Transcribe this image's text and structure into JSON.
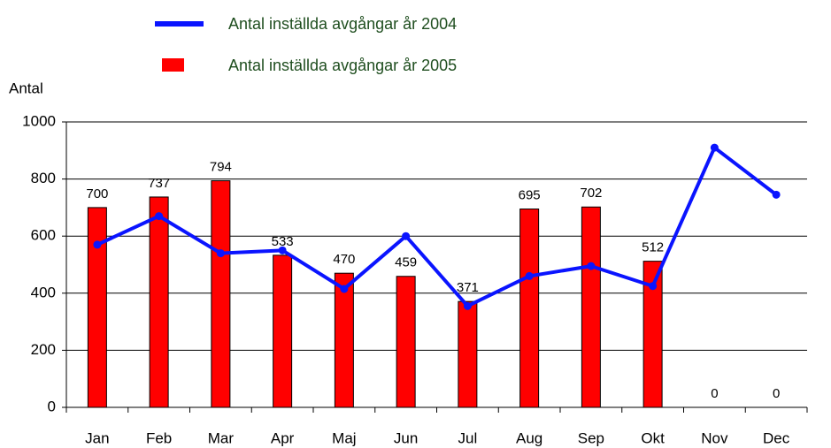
{
  "chart_data": {
    "type": "bar",
    "y_label": "Antal",
    "categories": [
      "Jan",
      "Feb",
      "Mar",
      "Apr",
      "Maj",
      "Jun",
      "Jul",
      "Aug",
      "Sep",
      "Okt",
      "Nov",
      "Dec"
    ],
    "series": [
      {
        "name": "Antal inställda avgångar år 2004",
        "type": "line",
        "color": "#0a14ff",
        "values": [
          570,
          670,
          540,
          550,
          415,
          600,
          355,
          460,
          495,
          425,
          910,
          745
        ]
      },
      {
        "name": "Antal inställda avgångar år 2005",
        "type": "bar",
        "color": "#ff0000",
        "values": [
          700,
          737,
          794,
          533,
          470,
          459,
          371,
          695,
          702,
          512,
          0,
          0
        ]
      }
    ],
    "ylim": [
      0,
      1000
    ],
    "yticks": [
      0,
      200,
      400,
      600,
      800,
      1000
    ],
    "grid": true
  }
}
